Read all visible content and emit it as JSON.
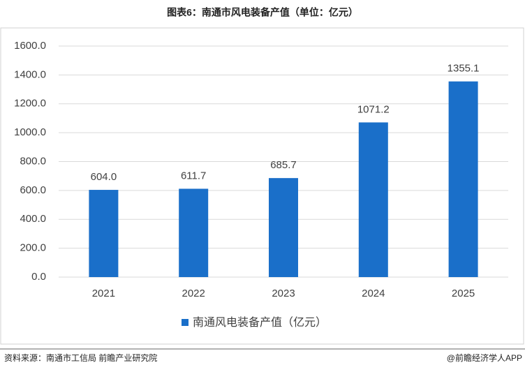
{
  "chart_data": {
    "type": "bar",
    "title": "图表6：南通市风电装备产值（单位：亿元）",
    "categories": [
      "2021",
      "2022",
      "2023",
      "2024",
      "2025"
    ],
    "series": [
      {
        "name": "南通风电装备产值（亿元）",
        "color": "#1a6fc9",
        "values": [
          604.0,
          611.7,
          685.7,
          1071.2,
          1355.1
        ],
        "value_labels": [
          "604.0",
          "611.7",
          "685.7",
          "1071.2",
          "1355.1"
        ]
      }
    ],
    "ylim": [
      0,
      1600
    ],
    "yticks": [
      {
        "value": 0,
        "label": "0.0"
      },
      {
        "value": 200,
        "label": "200.0"
      },
      {
        "value": 400,
        "label": "400.0"
      },
      {
        "value": 600,
        "label": "600.0"
      },
      {
        "value": 800,
        "label": "800.0"
      },
      {
        "value": 1000,
        "label": "1000.0"
      },
      {
        "value": 1200,
        "label": "1200.0"
      },
      {
        "value": 1400,
        "label": "1400.0"
      },
      {
        "value": 1600,
        "label": "1600.0"
      }
    ],
    "grid": true,
    "legend": "bottom"
  },
  "footer": {
    "source": "资料来源：南通市工信局  前瞻产业研究院",
    "credit": "@前瞻经济学人APP"
  }
}
